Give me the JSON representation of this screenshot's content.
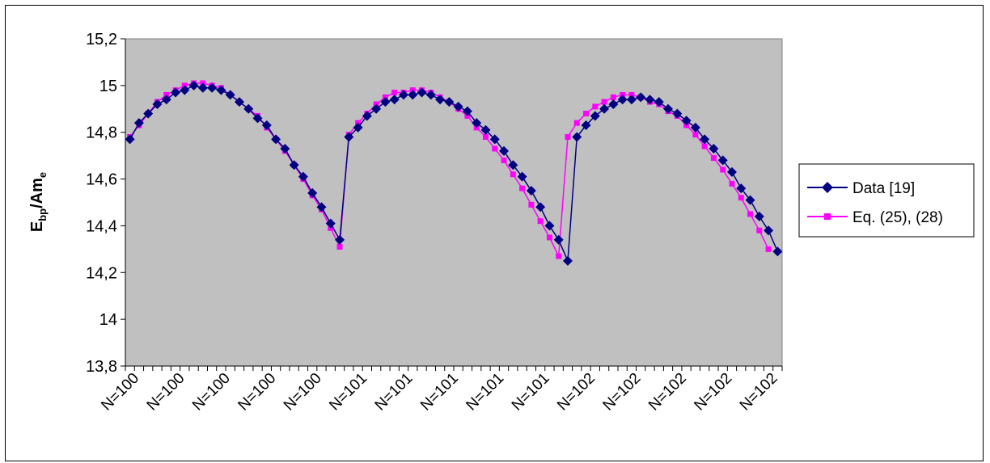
{
  "chart_data": {
    "type": "line",
    "title": "",
    "xlabel": "",
    "ylabel": "E",
    "ylabel_sub1": "bp",
    "ylabel_mid": "/Am",
    "ylabel_sub2": "e",
    "ylim": [
      13.8,
      15.2
    ],
    "y_ticks": [
      "13,8",
      "14",
      "14,2",
      "14,4",
      "14,6",
      "14,8",
      "15",
      "15,2"
    ],
    "y_tick_values": [
      13.8,
      14.0,
      14.2,
      14.4,
      14.6,
      14.8,
      15.0,
      15.2
    ],
    "x_tick_labels": [
      "N=100",
      "N=100",
      "N=100",
      "N=100",
      "N=100",
      "N=101",
      "N=101",
      "N=101",
      "N=101",
      "N=101",
      "N=102",
      "N=102",
      "N=102",
      "N=102",
      "N=102"
    ],
    "grid": false,
    "plot_background": "#c0c0c0",
    "legend_position": "right",
    "series": [
      {
        "name": "Data [19]",
        "color": "#000080",
        "marker": "diamond",
        "values": [
          14.77,
          14.84,
          14.88,
          14.92,
          14.94,
          14.97,
          14.98,
          15.0,
          14.99,
          14.99,
          14.98,
          14.96,
          14.93,
          14.9,
          14.86,
          14.83,
          14.77,
          14.73,
          14.66,
          14.61,
          14.54,
          14.48,
          14.41,
          14.34,
          14.78,
          14.82,
          14.87,
          14.9,
          14.93,
          14.94,
          14.96,
          14.96,
          14.97,
          14.96,
          14.94,
          14.93,
          14.91,
          14.89,
          14.84,
          14.81,
          14.77,
          14.72,
          14.66,
          14.61,
          14.55,
          14.48,
          14.4,
          14.34,
          14.25,
          14.78,
          14.83,
          14.87,
          14.9,
          14.92,
          14.94,
          14.94,
          14.95,
          14.94,
          14.93,
          14.9,
          14.88,
          14.85,
          14.82,
          14.77,
          14.73,
          14.68,
          14.63,
          14.56,
          14.51,
          14.44,
          14.38,
          14.29
        ]
      },
      {
        "name": "Eq. (25), (28)",
        "color": "#ff00ff",
        "marker": "square",
        "values": [
          14.78,
          14.83,
          14.88,
          14.93,
          14.96,
          14.98,
          15.0,
          15.01,
          15.01,
          15.0,
          14.99,
          14.96,
          14.93,
          14.9,
          14.87,
          14.82,
          14.77,
          14.72,
          14.66,
          14.6,
          14.53,
          14.47,
          14.39,
          14.31,
          14.79,
          14.84,
          14.88,
          14.92,
          14.95,
          14.97,
          14.97,
          14.98,
          14.98,
          14.97,
          14.95,
          14.93,
          14.9,
          14.87,
          14.82,
          14.78,
          14.73,
          14.68,
          14.62,
          14.56,
          14.49,
          14.42,
          14.35,
          14.27,
          14.78,
          14.84,
          14.88,
          14.91,
          14.93,
          14.95,
          14.96,
          14.96,
          14.95,
          14.93,
          14.92,
          14.89,
          14.87,
          14.83,
          14.79,
          14.74,
          14.69,
          14.64,
          14.58,
          14.52,
          14.45,
          14.38,
          14.3
        ]
      }
    ]
  }
}
